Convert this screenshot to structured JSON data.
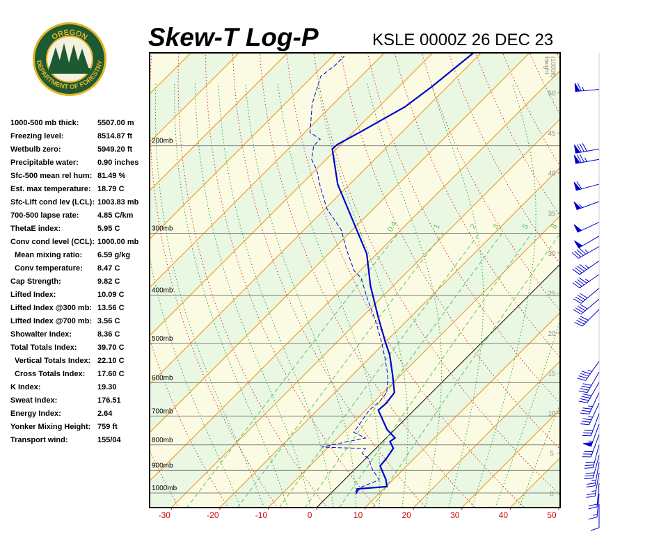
{
  "logo": {
    "top": "OREGON",
    "bottom": "DEPARTMENT OF FORESTRY"
  },
  "indices": [
    {
      "label": "1000-500 mb thick:",
      "value": "5507.00 m"
    },
    {
      "label": "Freezing level:",
      "value": "8514.87 ft"
    },
    {
      "label": "Wetbulb zero:",
      "value": "5949.20 ft"
    },
    {
      "label": "Precipitable water:",
      "value": "0.90 inches"
    },
    {
      "label": "Sfc-500 mean rel hum:",
      "value": "81.49 %"
    },
    {
      "label": "Est. max temperature:",
      "value": "18.79 C"
    },
    {
      "label": "Sfc-Lift cond lev (LCL):",
      "value": "1003.83 mb"
    },
    {
      "label": "700-500 lapse rate:",
      "value": "4.85 C/km"
    },
    {
      "label": "ThetaE index:",
      "value": "5.95 C"
    },
    {
      "label": "Conv cond level (CCL):",
      "value": "1000.00 mb"
    },
    {
      "label": "Mean mixing ratio:",
      "value": "6.59 g/kg"
    },
    {
      "label": "Conv temperature:",
      "value": "8.47 C"
    },
    {
      "label": "Cap Strength:",
      "value": "9.82 C"
    },
    {
      "label": "Lifted Index:",
      "value": "10.09 C"
    },
    {
      "label": "Lifted Index @300 mb:",
      "value": "13.56 C"
    },
    {
      "label": "Lifted Index @700 mb:",
      "value": "3.56 C"
    },
    {
      "label": "Showalter Index:",
      "value": "8.36 C"
    },
    {
      "label": "Total Totals Index:",
      "value": "39.70 C"
    },
    {
      "label": "Vertical Totals Index:",
      "value": "22.10 C"
    },
    {
      "label": "Cross Totals Index:",
      "value": "17.60 C"
    },
    {
      "label": "K Index:",
      "value": "19.30"
    },
    {
      "label": "Sweat Index:",
      "value": "176.51"
    },
    {
      "label": "Energy Index:",
      "value": "2.64"
    },
    {
      "label": "Yonker Mixing Height:",
      "value": "759 ft"
    },
    {
      "label": "Transport wind:",
      "value": "155/04"
    }
  ],
  "chart_data": {
    "type": "skewt",
    "title": "Skew-T Log-P",
    "subtitle": "KSLE 0000Z 26 DEC 23",
    "log_y": true,
    "ylim": [
      1070,
      130
    ],
    "yticks": [
      {
        "value": 200,
        "label": "200mb"
      },
      {
        "value": 300,
        "label": "300mb"
      },
      {
        "value": 400,
        "label": "400mb"
      },
      {
        "value": 500,
        "label": "500mb"
      },
      {
        "value": 600,
        "label": "600mb"
      },
      {
        "value": 700,
        "label": "700mb"
      },
      {
        "value": 800,
        "label": "800mb"
      },
      {
        "value": 900,
        "label": "900mb"
      },
      {
        "value": 1000,
        "label": "1000mb"
      }
    ],
    "xlim": [
      -34.5,
      50.3
    ],
    "xticks": [
      -30,
      -20,
      -10,
      0,
      10,
      20,
      30,
      40,
      50
    ],
    "y2label": [
      "Height",
      "(1000ft)"
    ],
    "y2lim": [
      -1.8,
      55
    ],
    "y2ticks": [
      0,
      5,
      10,
      15,
      20,
      25,
      30,
      35,
      40,
      45,
      50
    ],
    "mixing_ratios": [
      0.4,
      1,
      2,
      3,
      5,
      8
    ],
    "series": [
      {
        "color": "#0000cc",
        "x": [
          5.3,
          4.5,
          10.2,
          8.6,
          4.5,
          4.3,
          3.6,
          1.5,
          1.8,
          -1.6,
          -7.4,
          -7.2,
          -7.7,
          -11.6,
          -16.5,
          -20.1,
          -26.6,
          -34.7,
          -42.1,
          -51.6,
          -62.5,
          -70.9,
          -70.8,
          -68.5,
          -64.6,
          -63.2,
          -61.6
        ],
        "values": [
          1003,
          981,
          971,
          941,
          882,
          854,
          813,
          788,
          775,
          745,
          681,
          660,
          628,
          580,
          527,
          496,
          443,
          383,
          330,
          284,
          239,
          203,
          199,
          187,
          167,
          152,
          130
        ]
      },
      {
        "color": "#0000cc",
        "dashed": true,
        "x": [
          5.1,
          5.1,
          7.2,
          3.6,
          0.7,
          -1.8,
          -2.1,
          -11.5,
          -4.3,
          -7.9,
          -8.6,
          -9.3,
          -8.9,
          -9.3,
          -12.6,
          -16.8,
          -21.1,
          -26.6,
          -32.6,
          -38.3,
          -41.2,
          -47.1,
          -52.4,
          -59.6,
          -65.3,
          -69.7,
          -73.0,
          -75.4,
          -75.4,
          -78.9,
          -84.3,
          -88.3,
          -87.6,
          -87.6
        ],
        "values": [
          997,
          971,
          941,
          896,
          854,
          832,
          814,
          808,
          775,
          755,
          715,
          681,
          655,
          628,
          580,
          535,
          494,
          449,
          407,
          369,
          357,
          324,
          295,
          268,
          243,
          224,
          213,
          200,
          194,
          188,
          165,
          145,
          138,
          132
        ]
      }
    ],
    "winds": {
      "color": "#0000cc",
      "pressure": [
        154,
        203,
        213,
        239,
        259,
        285,
        304,
        319,
        341,
        363,
        387,
        407,
        427,
        543,
        571,
        599,
        628,
        660,
        692,
        727,
        763,
        800,
        840,
        868,
        911,
        956,
        1003,
        1053
      ],
      "direction": [
        265,
        260,
        260,
        255,
        250,
        245,
        240,
        240,
        235,
        235,
        230,
        230,
        225,
        215,
        210,
        210,
        205,
        205,
        200,
        200,
        200,
        195,
        195,
        190,
        190,
        185,
        185,
        180
      ],
      "speed": [
        65,
        80,
        75,
        60,
        55,
        50,
        50,
        45,
        45,
        45,
        40,
        40,
        40,
        45,
        40,
        40,
        35,
        35,
        30,
        55,
        30,
        30,
        30,
        25,
        25,
        20,
        15,
        10
      ]
    }
  }
}
